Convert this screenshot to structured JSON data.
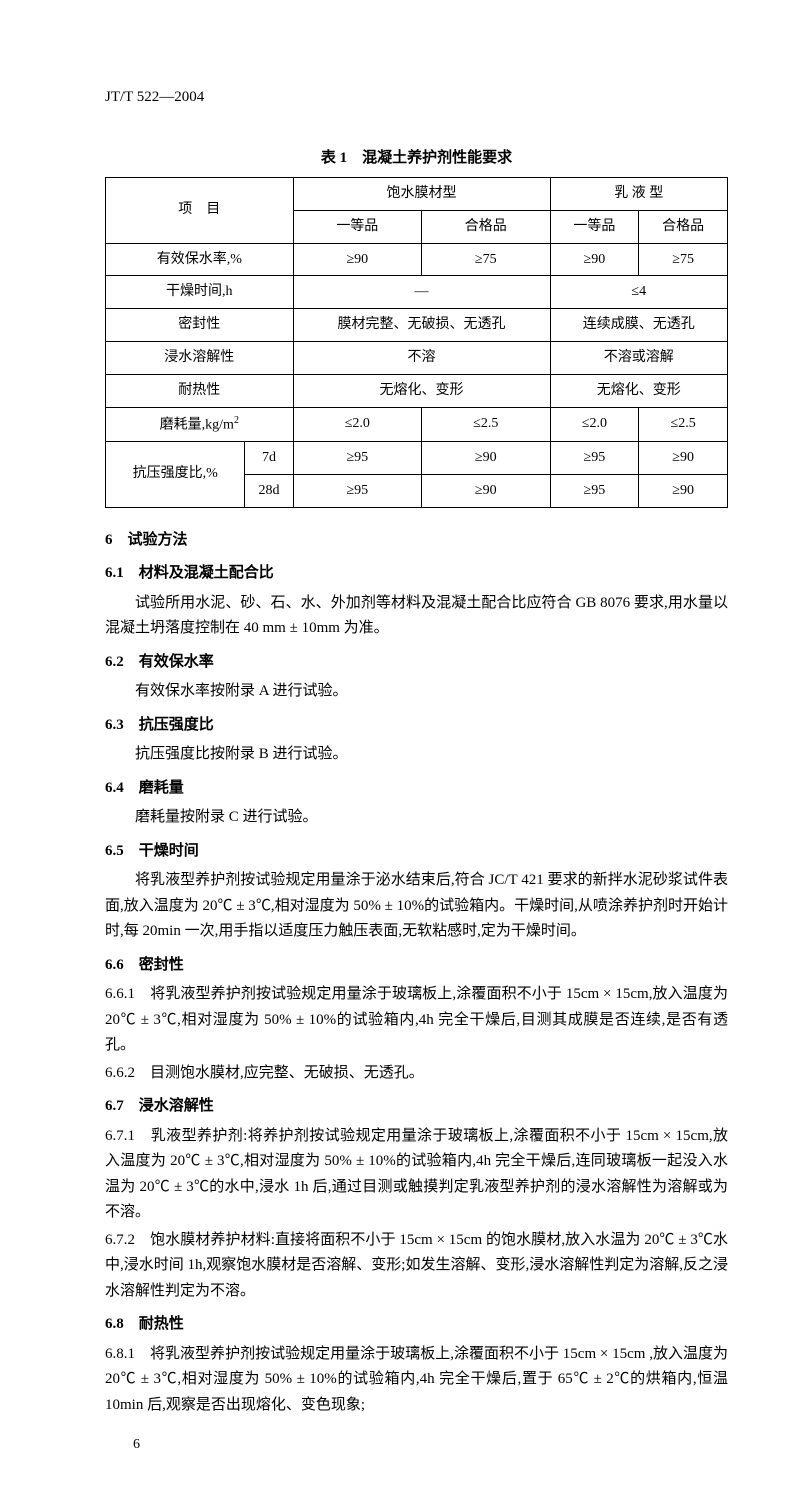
{
  "header": {
    "standard_number": "JT/T 522—2004"
  },
  "table": {
    "caption": "表 1　混凝土养护剂性能要求",
    "headers": {
      "col_item": "项　目",
      "col_type1": "饱水膜材型",
      "col_type2": "乳 液 型",
      "sub_grade1": "一等品",
      "sub_grade2": "合格品"
    },
    "rows": {
      "r1_label": "有效保水率,%",
      "r1_c1": "≥90",
      "r1_c2": "≥75",
      "r1_c3": "≥90",
      "r1_c4": "≥75",
      "r2_label": "干燥时间,h",
      "r2_c1": "—",
      "r2_c2": "≤4",
      "r3_label": "密封性",
      "r3_c1": "膜材完整、无破损、无透孔",
      "r3_c2": "连续成膜、无透孔",
      "r4_label": "浸水溶解性",
      "r4_c1": "不溶",
      "r4_c2": "不溶或溶解",
      "r5_label": "耐热性",
      "r5_c1": "无熔化、变形",
      "r5_c2": "无熔化、变形",
      "r6_label": "磨耗量,kg/m",
      "r6_sup": "2",
      "r6_c1": "≤2.0",
      "r6_c2": "≤2.5",
      "r6_c3": "≤2.0",
      "r6_c4": "≤2.5",
      "r7_label": "抗压强度比,%",
      "r7_sub1": "7d",
      "r7_1c1": "≥95",
      "r7_1c2": "≥90",
      "r7_1c3": "≥95",
      "r7_1c4": "≥90",
      "r7_sub2": "28d",
      "r7_2c1": "≥95",
      "r7_2c2": "≥90",
      "r7_2c3": "≥95",
      "r7_2c4": "≥90"
    }
  },
  "sections": {
    "s6": "6　试验方法",
    "s6_1_h": "6.1　材料及混凝土配合比",
    "s6_1_p": "试验所用水泥、砂、石、水、外加剂等材料及混凝土配合比应符合 GB 8076 要求,用水量以混凝土坍落度控制在 40 mm ± 10mm 为准。",
    "s6_2_h": "6.2　有效保水率",
    "s6_2_p": "有效保水率按附录 A 进行试验。",
    "s6_3_h": "6.3　抗压强度比",
    "s6_3_p": "抗压强度比按附录 B 进行试验。",
    "s6_4_h": "6.4　磨耗量",
    "s6_4_p": "磨耗量按附录 C 进行试验。",
    "s6_5_h": "6.5　干燥时间",
    "s6_5_p": "将乳液型养护剂按试验规定用量涂于泌水结束后,符合 JC/T 421 要求的新拌水泥砂浆试件表面,放入温度为 20℃ ± 3℃,相对湿度为 50% ± 10%的试验箱内。干燥时间,从喷涂养护剂时开始计时,每 20min 一次,用手指以适度压力触压表面,无软粘感时,定为干燥时间。",
    "s6_6_h": "6.6　密封性",
    "s6_6_1": "6.6.1　将乳液型养护剂按试验规定用量涂于玻璃板上,涂覆面积不小于 15cm × 15cm,放入温度为 20℃ ± 3℃,相对湿度为 50% ± 10%的试验箱内,4h 完全干燥后,目测其成膜是否连续,是否有透孔。",
    "s6_6_2": "6.6.2　目测饱水膜材,应完整、无破损、无透孔。",
    "s6_7_h": "6.7　浸水溶解性",
    "s6_7_1": "6.7.1　乳液型养护剂:将养护剂按试验规定用量涂于玻璃板上,涂覆面积不小于 15cm × 15cm,放入温度为 20℃ ± 3℃,相对湿度为 50% ± 10%的试验箱内,4h 完全干燥后,连同玻璃板一起没入水温为 20℃ ± 3℃的水中,浸水 1h 后,通过目测或触摸判定乳液型养护剂的浸水溶解性为溶解或为不溶。",
    "s6_7_2": "6.7.2　饱水膜材养护材料:直接将面积不小于 15cm × 15cm 的饱水膜材,放入水温为 20℃ ± 3℃水中,浸水时间 1h,观察饱水膜材是否溶解、变形;如发生溶解、变形,浸水溶解性判定为溶解,反之浸水溶解性判定为不溶。",
    "s6_8_h": "6.8　耐热性",
    "s6_8_1": "6.8.1　将乳液型养护剂按试验规定用量涂于玻璃板上,涂覆面积不小于 15cm × 15cm ,放入温度为 20℃ ± 3℃,相对湿度为 50% ± 10%的试验箱内,4h 完全干燥后,置于 65℃ ± 2℃的烘箱内,恒温 10min 后,观察是否出现熔化、变色现象;"
  },
  "page_number": "6"
}
